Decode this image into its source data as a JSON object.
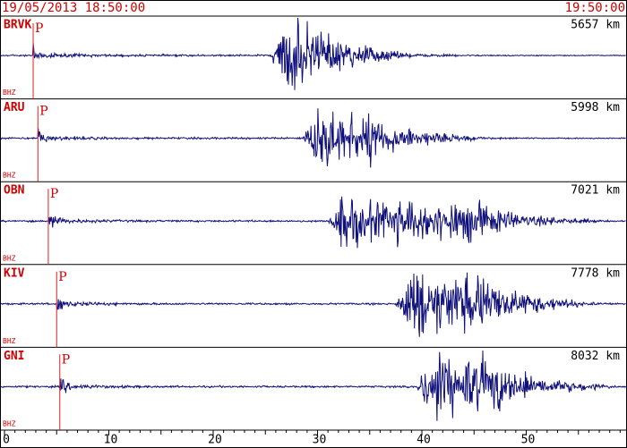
{
  "header": {
    "start": "19/05/2013 18:50:00",
    "end": "19:50:00"
  },
  "xlim": [
    0,
    60
  ],
  "xticks": [
    0,
    10,
    20,
    30,
    40,
    50
  ],
  "stations": [
    {
      "name": "BRVK",
      "distance": "5657 km",
      "channel": "BHZ",
      "phase": "P",
      "p_arrival": 2.75
    },
    {
      "name": "ARU",
      "distance": "5998 km",
      "channel": "BHZ",
      "phase": "P",
      "p_arrival": 3.2
    },
    {
      "name": "OBN",
      "distance": "7021 km",
      "channel": "BHZ",
      "phase": "P",
      "p_arrival": 4.2
    },
    {
      "name": "KIV",
      "distance": "7778 km",
      "channel": "BHZ",
      "phase": "P",
      "p_arrival": 5.0
    },
    {
      "name": "GNI",
      "distance": "8032 km",
      "channel": "BHZ",
      "phase": "P",
      "p_arrival": 5.3
    }
  ]
}
